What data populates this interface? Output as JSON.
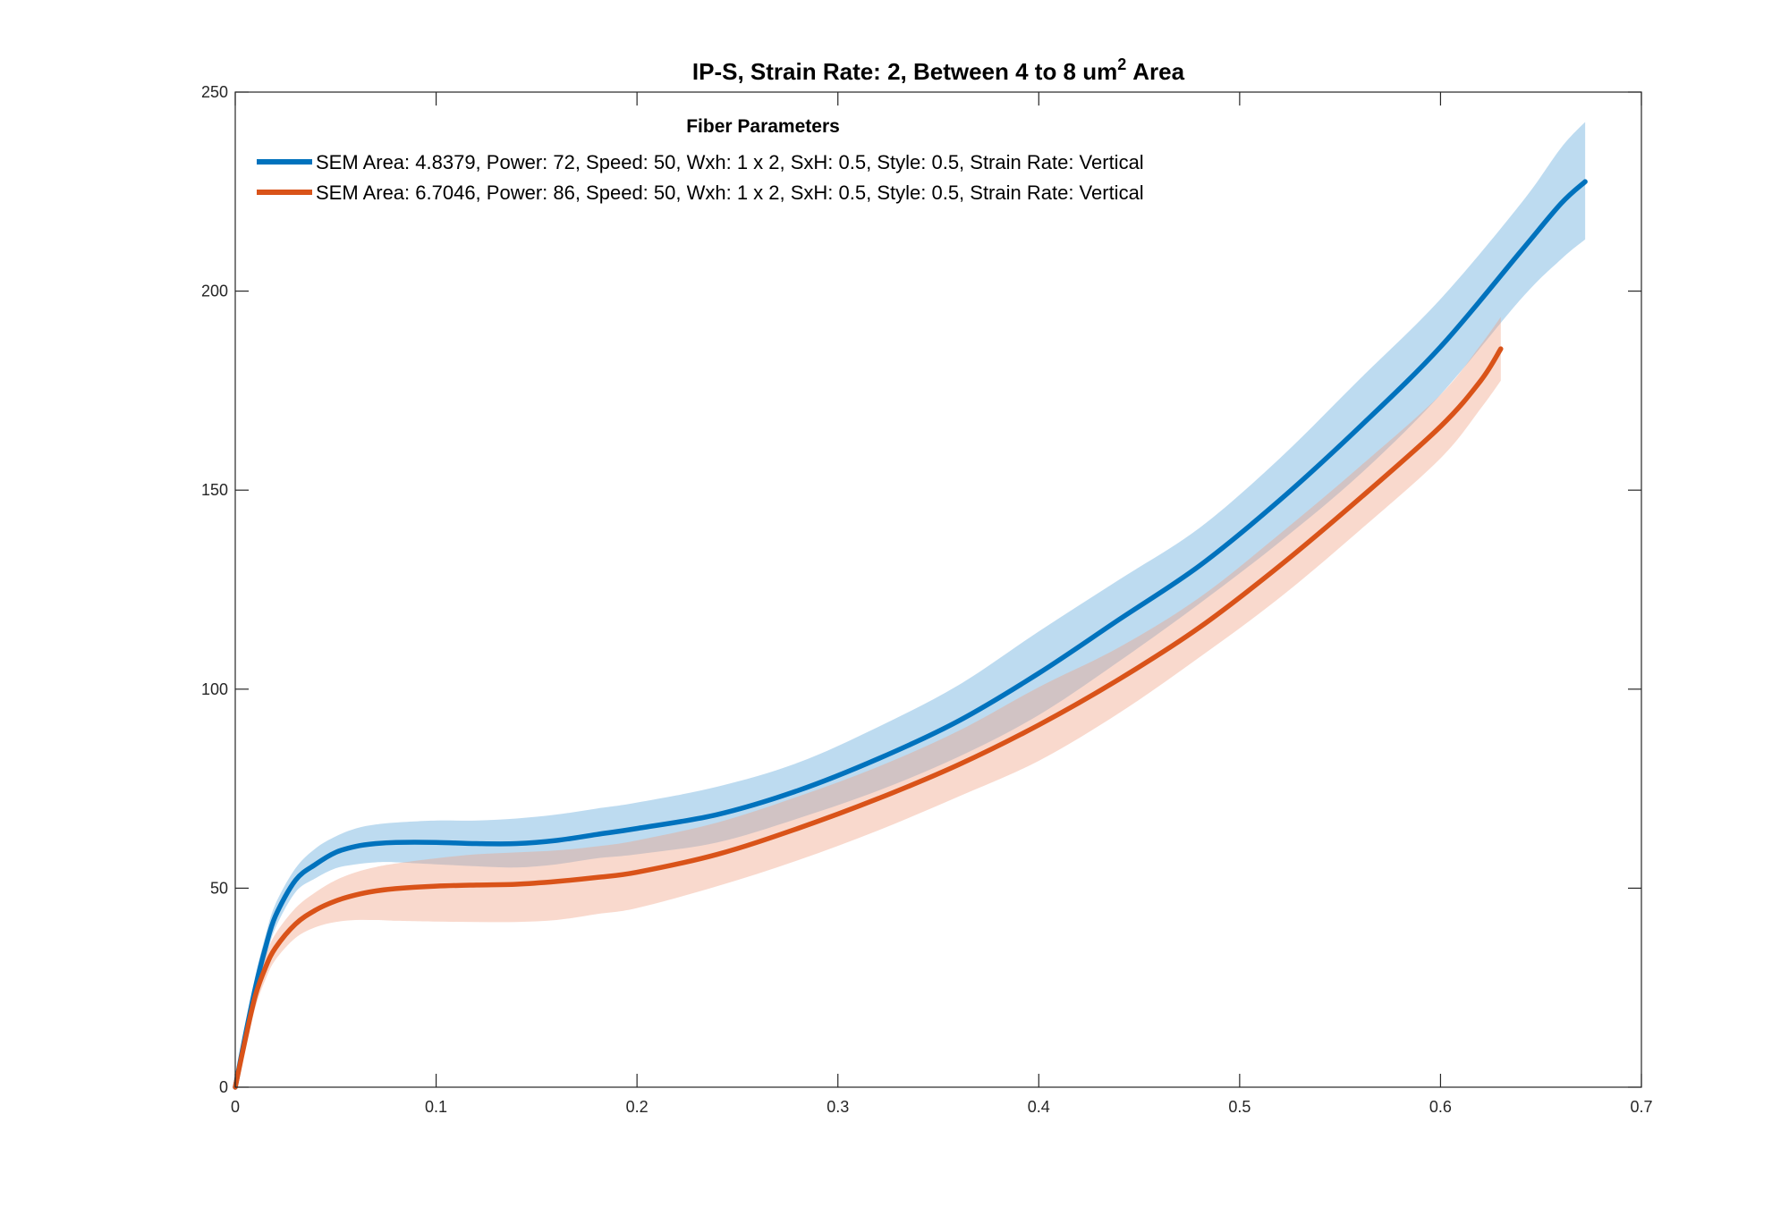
{
  "chart_data": {
    "type": "line",
    "title": "IP-S, Strain Rate: 2, Between 4 to 8 um",
    "title_superscript": "2",
    "title_suffix": "Area",
    "xlabel": "",
    "ylabel": "",
    "xlim": [
      0,
      0.7
    ],
    "ylim": [
      0,
      250
    ],
    "xticks": [
      0,
      0.1,
      0.2,
      0.3,
      0.4,
      0.5,
      0.6,
      0.7
    ],
    "xtick_labels": [
      "0",
      "0.1",
      "0.2",
      "0.3",
      "0.4",
      "0.5",
      "0.6",
      "0.7"
    ],
    "yticks": [
      0,
      50,
      100,
      150,
      200,
      250
    ],
    "ytick_labels": [
      "0",
      "50",
      "100",
      "150",
      "200",
      "250"
    ],
    "grid": false,
    "legend": {
      "title": "Fiber Parameters",
      "location": "top-left"
    },
    "series": [
      {
        "name": "SEM Area: 4.8379, Power: 72, Speed: 50, Wxh: 1 x 2, SxH: 0.5, Style: 0.5, Strain Rate: Vertical",
        "color": "#0072BD",
        "band_color": "#5AA5DA",
        "x": [
          0,
          0.005,
          0.01,
          0.015,
          0.02,
          0.03,
          0.04,
          0.05,
          0.06,
          0.07,
          0.08,
          0.1,
          0.12,
          0.14,
          0.16,
          0.18,
          0.2,
          0.24,
          0.28,
          0.32,
          0.36,
          0.4,
          0.44,
          0.48,
          0.52,
          0.56,
          0.6,
          0.64,
          0.66,
          0.672
        ],
        "y": [
          0,
          13,
          25,
          35,
          43,
          52,
          56,
          59,
          60.5,
          61.2,
          61.5,
          61.5,
          61.2,
          61.2,
          62,
          63.5,
          65,
          68.5,
          74.5,
          82.5,
          92,
          104,
          117.5,
          131,
          147.5,
          166,
          186,
          210,
          222,
          227.5
        ],
        "upper": [
          0,
          15,
          28,
          38,
          46,
          55,
          60,
          63,
          65,
          66,
          66.5,
          67,
          67,
          67.5,
          68.5,
          70,
          71.5,
          75.5,
          81.5,
          90.5,
          101,
          114.5,
          127.5,
          140.5,
          158,
          178,
          198,
          222,
          236,
          242.5
        ],
        "lower": [
          0,
          11,
          22,
          32,
          40,
          49,
          52.5,
          55,
          56,
          56.5,
          56.5,
          56,
          55.5,
          55.2,
          56,
          57.5,
          58.5,
          61.5,
          67.5,
          74.5,
          83,
          93.5,
          107,
          121.5,
          137,
          154,
          174,
          198,
          208,
          213
        ]
      },
      {
        "name": "SEM Area: 6.7046, Power: 86, Speed: 50, Wxh: 1 x 2, SxH: 0.5, Style: 0.5, Strain Rate: Vertical",
        "color": "#D95319",
        "band_color": "#F0A183",
        "x": [
          0,
          0.005,
          0.01,
          0.015,
          0.02,
          0.03,
          0.04,
          0.05,
          0.06,
          0.07,
          0.08,
          0.1,
          0.12,
          0.14,
          0.16,
          0.18,
          0.2,
          0.24,
          0.28,
          0.32,
          0.36,
          0.4,
          0.44,
          0.48,
          0.52,
          0.56,
          0.6,
          0.62,
          0.63
        ],
        "y": [
          0,
          12,
          23,
          30,
          35,
          41,
          44.5,
          46.8,
          48.3,
          49.3,
          49.9,
          50.5,
          50.8,
          51,
          51.7,
          52.7,
          54,
          58.5,
          65,
          72.5,
          81,
          91,
          102.5,
          115.5,
          131,
          148,
          166,
          177.5,
          185.5
        ],
        "upper": [
          0,
          14,
          26,
          33,
          38.5,
          45,
          49,
          52,
          54,
          55.3,
          56.2,
          57.5,
          58.5,
          59,
          59.5,
          60.5,
          62,
          66.5,
          73,
          80.5,
          89.5,
          100.5,
          110.5,
          123,
          139,
          156,
          174,
          186.5,
          193.5
        ],
        "lower": [
          0,
          10,
          20,
          27,
          32,
          37.5,
          40.2,
          41.5,
          42,
          42,
          41.8,
          41.6,
          41.5,
          41.5,
          42,
          43.5,
          45,
          50.5,
          57,
          64.5,
          73,
          82,
          94,
          108,
          123,
          140,
          158,
          170.5,
          177.5
        ]
      }
    ]
  }
}
